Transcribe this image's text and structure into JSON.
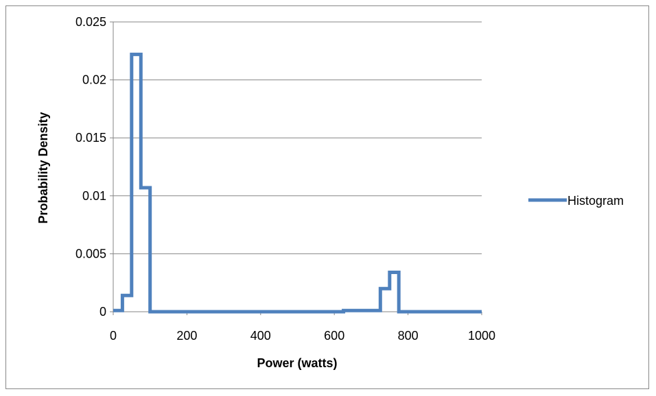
{
  "chart_data": {
    "type": "line",
    "title": "",
    "xlabel": "Power (watts)",
    "ylabel": "Probability Density",
    "xlim": [
      0,
      1000
    ],
    "ylim": [
      0,
      0.025
    ],
    "x_ticks": [
      0,
      200,
      400,
      600,
      800,
      1000
    ],
    "x_tick_labels": [
      "0",
      "200",
      "400",
      "600",
      "800",
      "1000"
    ],
    "y_ticks": [
      0,
      0.005,
      0.01,
      0.015,
      0.02,
      0.025
    ],
    "y_tick_labels": [
      "0",
      "0.005",
      "0.01",
      "0.015",
      "0.02",
      "0.025"
    ],
    "grid": "horizontal",
    "legend_position": "right",
    "series": [
      {
        "name": "Histogram",
        "color": "#4f81bd",
        "step": true,
        "x": [
          0,
          25,
          25,
          50,
          50,
          75,
          75,
          100,
          100,
          625,
          625,
          725,
          725,
          750,
          750,
          775,
          775,
          1000
        ],
        "y": [
          0.0001,
          0.0001,
          0.0014,
          0.0014,
          0.0222,
          0.0222,
          0.0107,
          0.0107,
          0,
          0,
          0.0001,
          0.0001,
          0.002,
          0.002,
          0.0034,
          0.0034,
          0,
          0
        ]
      }
    ]
  }
}
